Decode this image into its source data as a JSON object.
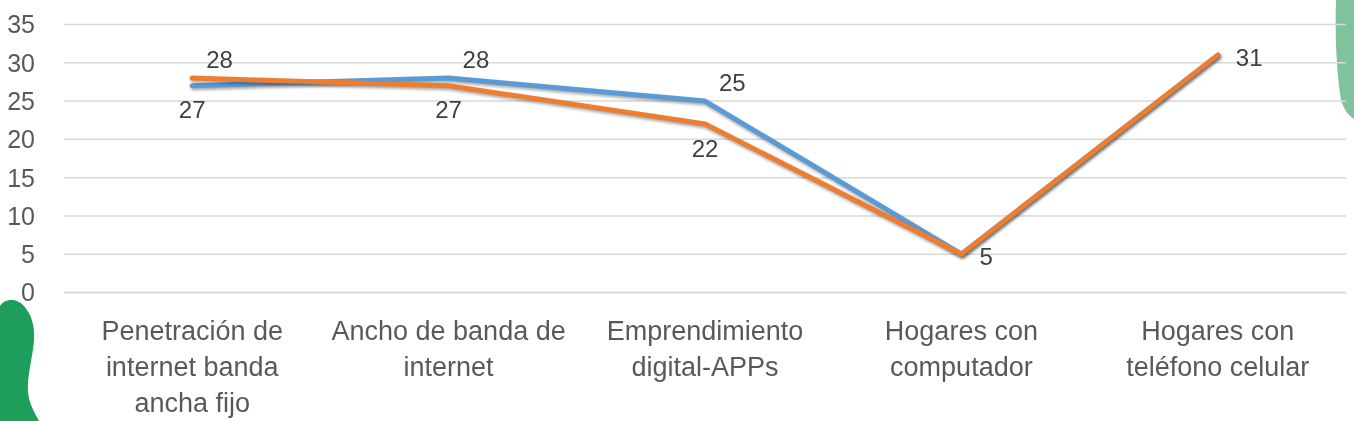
{
  "chart_data": {
    "type": "line",
    "categories": [
      "Penetración de internet banda ancha fijo",
      "Ancho de banda de internet",
      "Emprendimiento digital-APPs",
      "Hogares con computador",
      "Hogares con teléfono celular"
    ],
    "series": [
      {
        "color": "#5b9bd5",
        "values": [
          27,
          28,
          25,
          5,
          31
        ],
        "value_labels": [
          "27",
          "28",
          "25",
          null,
          null
        ]
      },
      {
        "color": "#ed7d31",
        "values": [
          28,
          27,
          22,
          5,
          31
        ],
        "value_labels": [
          "28",
          "27",
          "22",
          "5",
          "31"
        ]
      }
    ],
    "ylim": [
      0,
      35
    ],
    "yticks": [
      0,
      5,
      10,
      15,
      20,
      25,
      30,
      35
    ],
    "grid": "y",
    "marker": "none",
    "line_style": "solid"
  }
}
